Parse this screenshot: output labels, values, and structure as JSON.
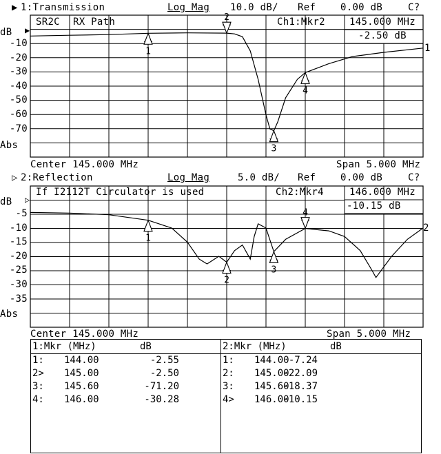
{
  "ch1": {
    "header": {
      "marker": "▶",
      "title": "1:Transmission",
      "format": "Log Mag",
      "scale": "10.0 dB/",
      "ref_label": "Ref",
      "ref_value": "0.00 dB",
      "status": "C?"
    },
    "title_boxes": [
      "SR2C",
      "RX Path"
    ],
    "active_marker": "Ch1:Mkr2",
    "marker_freq": "145.000 MHz",
    "marker_value": "-2.50 dB",
    "unit": "dB",
    "y_ticks": [
      "-10",
      "-20",
      "-30",
      "-40",
      "-50",
      "-60",
      "-70"
    ],
    "abs_label": "Abs",
    "trace_label": "1",
    "center": "Center 145.000 MHz",
    "span": "Span 5.000 MHz"
  },
  "ch2": {
    "header": {
      "marker": "▷",
      "title": "2:Reflection",
      "format": "Log Mag",
      "scale": "5.0 dB/",
      "ref_label": "Ref",
      "ref_value": "0.00 dB",
      "status": "C?"
    },
    "title_text": "If I2112T Circulator is used",
    "active_marker": "Ch2:Mkr4",
    "marker_freq": "146.000 MHz",
    "marker_value": "-10.15 dB",
    "unit": "dB",
    "y_ticks": [
      "-5",
      "-10",
      "-15",
      "-20",
      "-25",
      "-30",
      "-35"
    ],
    "abs_label": "Abs",
    "trace_label": "2",
    "center": "Center 145.000 MHz",
    "span": "Span 5.000 MHz"
  },
  "marker_table": {
    "ch1": {
      "header": "1:Mkr (MHz)",
      "col_db": "dB",
      "rows": [
        {
          "id": "1:",
          "freq": "144.00",
          "db": "-2.55"
        },
        {
          "id": "2>",
          "freq": "145.00",
          "db": "-2.50"
        },
        {
          "id": "3:",
          "freq": "145.60",
          "db": "-71.20"
        },
        {
          "id": "4:",
          "freq": "146.00",
          "db": "-30.28"
        }
      ]
    },
    "ch2": {
      "header": "2:Mkr (MHz)",
      "col_db": "dB",
      "rows": [
        {
          "id": "1:",
          "freq": "144.00",
          "db": "-7.24"
        },
        {
          "id": "2:",
          "freq": "145.00",
          "db": "-22.09"
        },
        {
          "id": "3:",
          "freq": "145.60",
          "db": "-18.37"
        },
        {
          "id": "4>",
          "freq": "146.00",
          "db": "-10.15"
        }
      ]
    }
  },
  "chart_data": [
    {
      "type": "line",
      "title": "1:Transmission",
      "xlim": [
        142.5,
        147.5
      ],
      "ylim": [
        -100,
        10
      ],
      "ref_db": 0,
      "grid": true,
      "series": [
        {
          "name": "1",
          "points": [
            [
              142.5,
              -4.5
            ],
            [
              143,
              -4
            ],
            [
              143.5,
              -3.5
            ],
            [
              144,
              -2.55
            ],
            [
              144.5,
              -2.3
            ],
            [
              145,
              -2.5
            ],
            [
              145.1,
              -3
            ],
            [
              145.2,
              -5
            ],
            [
              145.3,
              -15
            ],
            [
              145.4,
              -35
            ],
            [
              145.5,
              -60
            ],
            [
              145.55,
              -70
            ],
            [
              145.6,
              -71.2
            ],
            [
              145.65,
              -65
            ],
            [
              145.75,
              -48
            ],
            [
              145.9,
              -35
            ],
            [
              146,
              -30.28
            ],
            [
              146.3,
              -24
            ],
            [
              146.6,
              -19
            ],
            [
              147,
              -16
            ],
            [
              147.5,
              -13
            ]
          ]
        }
      ],
      "markers": [
        {
          "label": "1",
          "freq": 144.0,
          "db": -2.55,
          "active": false
        },
        {
          "label": "2",
          "freq": 145.0,
          "db": -2.5,
          "active": true
        },
        {
          "label": "3",
          "freq": 145.6,
          "db": -71.2,
          "active": false
        },
        {
          "label": "4",
          "freq": 146.0,
          "db": -30.28,
          "active": false
        }
      ]
    },
    {
      "type": "line",
      "title": "2:Reflection",
      "xlim": [
        142.5,
        147.5
      ],
      "ylim": [
        -45,
        5
      ],
      "ref_db": 0,
      "grid": true,
      "series": [
        {
          "name": "2",
          "points": [
            [
              142.5,
              -4.5
            ],
            [
              143,
              -4.7
            ],
            [
              143.5,
              -5.3
            ],
            [
              144,
              -7.24
            ],
            [
              144.3,
              -10
            ],
            [
              144.5,
              -15
            ],
            [
              144.65,
              -21
            ],
            [
              144.75,
              -22.7
            ],
            [
              144.9,
              -20
            ],
            [
              145,
              -22.09
            ],
            [
              145.1,
              -18
            ],
            [
              145.2,
              -16
            ],
            [
              145.3,
              -21
            ],
            [
              145.35,
              -13
            ],
            [
              145.4,
              -8.5
            ],
            [
              145.5,
              -10
            ],
            [
              145.6,
              -18.37
            ],
            [
              145.75,
              -14
            ],
            [
              146,
              -10.15
            ],
            [
              146.3,
              -11
            ],
            [
              146.5,
              -13
            ],
            [
              146.7,
              -18
            ],
            [
              146.85,
              -25
            ],
            [
              146.9,
              -27.5
            ],
            [
              147.1,
              -20
            ],
            [
              147.3,
              -14
            ],
            [
              147.5,
              -10
            ]
          ]
        }
      ],
      "markers": [
        {
          "label": "1",
          "freq": 144.0,
          "db": -7.24,
          "active": false
        },
        {
          "label": "2",
          "freq": 145.0,
          "db": -22.09,
          "active": false
        },
        {
          "label": "3",
          "freq": 145.6,
          "db": -18.37,
          "active": false
        },
        {
          "label": "4",
          "freq": 146.0,
          "db": -10.15,
          "active": true
        }
      ]
    }
  ]
}
